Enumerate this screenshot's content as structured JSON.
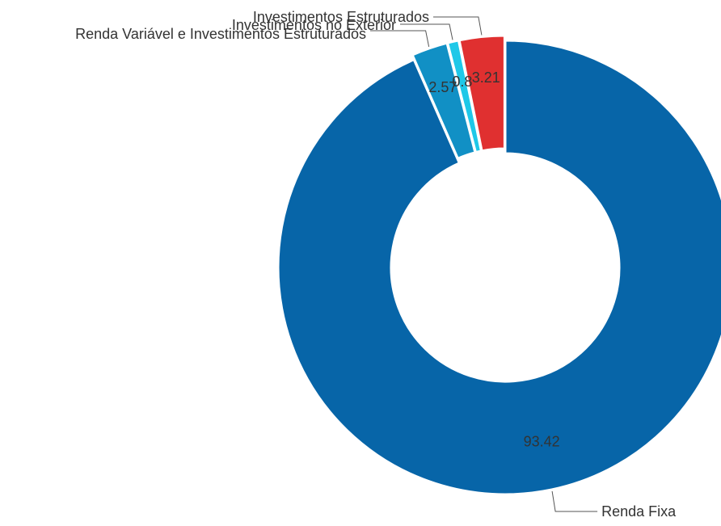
{
  "chart_data": {
    "type": "pie",
    "variant": "donut",
    "title": "",
    "categories": [
      "Renda Fixa",
      "Renda Variável e Investimentos Estruturados",
      "Investimentos no Exterior",
      "Investimentos Estruturados"
    ],
    "values": [
      93.42,
      2.57,
      0.8,
      3.21
    ],
    "value_labels": [
      "93.42",
      "2.57",
      "0.8",
      "3.21"
    ],
    "colors": [
      "#0765a8",
      "#1190c5",
      "#1ec8e8",
      "#e03030"
    ],
    "start_angle_deg": 0,
    "direction": "clockwise",
    "legend": "none",
    "data_labels": "on-slice"
  }
}
